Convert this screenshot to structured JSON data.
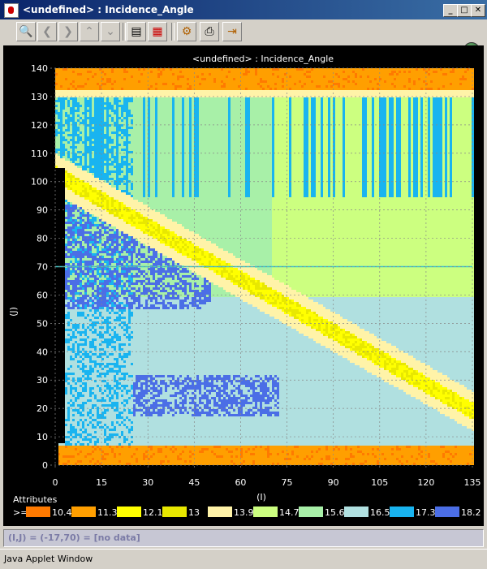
{
  "window": {
    "title": "<undefined> : Incidence_Angle",
    "buttons": [
      "_",
      "□",
      "✕"
    ]
  },
  "toolbar": {
    "buttons": [
      {
        "name": "zoom-icon",
        "glyph": "🔍"
      },
      {
        "name": "back-icon",
        "glyph": "❮"
      },
      {
        "name": "forward-icon",
        "glyph": "❯"
      },
      {
        "name": "up-icon",
        "glyph": "⌃"
      },
      {
        "name": "down-icon",
        "glyph": "⌄"
      },
      {
        "name": "table-icon",
        "glyph": "▤"
      },
      {
        "name": "color-grid-icon",
        "glyph": "▦"
      },
      {
        "name": "settings-icon",
        "glyph": "⚙"
      },
      {
        "name": "print-icon",
        "glyph": "⎙"
      },
      {
        "name": "exit-icon",
        "glyph": "⇥"
      }
    ]
  },
  "status": {
    "coords": "(I,J) = (-17,70) = [no data]"
  },
  "applet_label": "Java Applet Window",
  "chart_data": {
    "type": "heatmap",
    "title": "<undefined> : Incidence_Angle",
    "xlabel": "(I)",
    "ylabel": "(J)",
    "xlim": [
      0,
      135
    ],
    "ylim": [
      0,
      140
    ],
    "x_ticks": [
      0,
      15,
      30,
      45,
      60,
      75,
      90,
      105,
      120,
      135
    ],
    "y_ticks": [
      0,
      10,
      20,
      30,
      40,
      50,
      60,
      70,
      80,
      90,
      100,
      110,
      120,
      130,
      140
    ],
    "grid": true,
    "legend": {
      "title": "Attributes",
      "prefix": ">=",
      "placement": "bottom",
      "entries": [
        {
          "label": "10.4",
          "color": "#ff7a00"
        },
        {
          "label": "11.3",
          "color": "#ff9f00"
        },
        {
          "label": "12.1",
          "color": "#ffff00"
        },
        {
          "label": "13",
          "color": "#e8e800"
        },
        {
          "label": "13.9",
          "color": "#fff3a8"
        },
        {
          "label": "14.7",
          "color": "#ccff80"
        },
        {
          "label": "15.6",
          "color": "#a8f0a8"
        },
        {
          "label": "16.5",
          "color": "#b0e0e0"
        },
        {
          "label": "17.3",
          "color": "#19b4f0"
        },
        {
          "label": "18.2",
          "color": "#4b6ee6"
        }
      ]
    }
  }
}
